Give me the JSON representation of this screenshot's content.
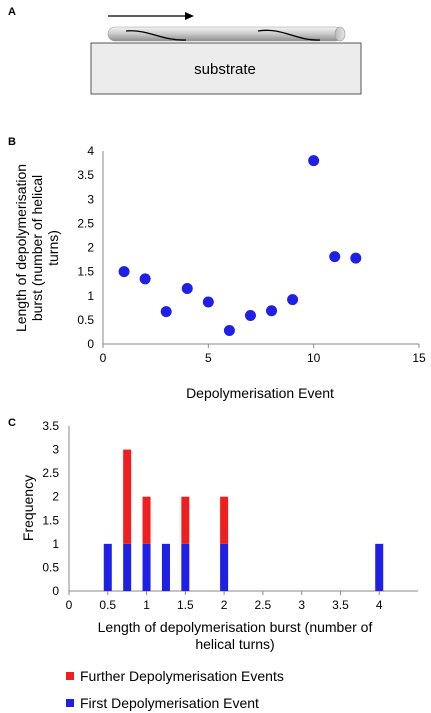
{
  "panel_labels": {
    "a": "A",
    "b": "B",
    "c": "C"
  },
  "diagram": {
    "substrate_label": "substrate"
  },
  "colors": {
    "scatter": "#1f1fe6",
    "first": "#1f1fe6",
    "further": "#f01f1f"
  },
  "chart_data": [
    {
      "type": "scatter",
      "xlabel": "Depolymerisation Event",
      "ylabel_lines": [
        "Length of depolymerisation",
        "burst (number of helical",
        "turns)"
      ],
      "xlim": [
        0,
        15
      ],
      "ylim": [
        0,
        4
      ],
      "xticks": [
        "0",
        "5",
        "10",
        "15"
      ],
      "yticks": [
        "0",
        "0.5",
        "1",
        "1.5",
        "2",
        "2.5",
        "3",
        "3.5",
        "4"
      ],
      "grid": false,
      "points": [
        {
          "x": 1,
          "y": 1.5
        },
        {
          "x": 2,
          "y": 1.35
        },
        {
          "x": 3,
          "y": 0.67
        },
        {
          "x": 4,
          "y": 1.15
        },
        {
          "x": 5,
          "y": 0.87
        },
        {
          "x": 6,
          "y": 0.28
        },
        {
          "x": 7,
          "y": 0.59
        },
        {
          "x": 8,
          "y": 0.69
        },
        {
          "x": 9,
          "y": 0.92
        },
        {
          "x": 10,
          "y": 3.8
        },
        {
          "x": 11,
          "y": 1.81
        },
        {
          "x": 12,
          "y": 1.78
        }
      ]
    },
    {
      "type": "bar",
      "stacked": true,
      "xlabel_lines": [
        "Length of depolymerisation burst (number of",
        "helical turns)"
      ],
      "ylabel": "Frequency",
      "xlim": [
        0,
        4.5
      ],
      "ylim": [
        0,
        3.5
      ],
      "xticks": [
        "0",
        "0.5",
        "1",
        "1.5",
        "2",
        "2.5",
        "3",
        "3.5",
        "4"
      ],
      "yticks": [
        "0",
        "0.5",
        "1",
        "1.5",
        "2",
        "2.5",
        "3",
        "3.5"
      ],
      "grid": false,
      "legend_position": "bottom",
      "x": [
        0.5,
        0.75,
        1,
        1.25,
        1.5,
        2,
        4
      ],
      "series": [
        {
          "name": "First Depolymerisation Event",
          "values": [
            1,
            1,
            1,
            1,
            1,
            1,
            1
          ]
        },
        {
          "name": "Further Depolymerisation Events",
          "values": [
            0,
            2,
            1,
            0,
            1,
            1,
            0
          ]
        }
      ]
    }
  ]
}
